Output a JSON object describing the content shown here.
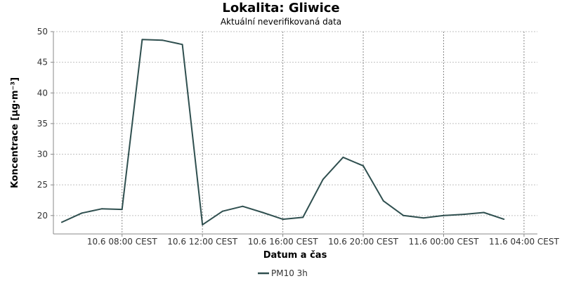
{
  "chart_data": {
    "type": "line",
    "title": "Lokalita: Gliwice",
    "subtitle": "Aktuální neverifikovaná data",
    "xlabel": "Datum a čas",
    "ylabel": "Koncentrace [µg·m⁻³]",
    "ylim": [
      17,
      50
    ],
    "yticks": [
      20,
      25,
      30,
      35,
      40,
      45,
      50
    ],
    "xlim": [
      "10.6 04:35",
      "11.6 04:40"
    ],
    "xticks": [
      {
        "t": "10.6 08:00",
        "label": "10.6 08:00 CEST"
      },
      {
        "t": "10.6 12:00",
        "label": "10.6 12:00 CEST"
      },
      {
        "t": "10.6 16:00",
        "label": "10.6 16:00 CEST"
      },
      {
        "t": "10.6 20:00",
        "label": "10.6 20:00 CEST"
      },
      {
        "t": "11.6 00:00",
        "label": "11.6 00:00 CEST"
      },
      {
        "t": "11.6 04:00",
        "label": "11.6 04:00 CEST"
      }
    ],
    "grid": true,
    "legend_position": "bottom-center",
    "series": [
      {
        "name": "PM10 3h",
        "color": "#2f4f4f",
        "x": [
          "10.6 05:00",
          "10.6 06:00",
          "10.6 07:00",
          "10.6 08:00",
          "10.6 09:00",
          "10.6 10:00",
          "10.6 11:00",
          "10.6 12:00",
          "10.6 13:00",
          "10.6 14:00",
          "10.6 15:00",
          "10.6 16:00",
          "10.6 17:00",
          "10.6 18:00",
          "10.6 19:00",
          "10.6 20:00",
          "10.6 21:00",
          "10.6 22:00",
          "10.6 23:00",
          "11.6 00:00",
          "11.6 01:00",
          "11.6 02:00",
          "11.6 03:00"
        ],
        "y": [
          18.9,
          20.4,
          21.1,
          21.0,
          48.7,
          48.6,
          47.9,
          18.5,
          20.7,
          21.5,
          20.5,
          19.4,
          19.7,
          25.9,
          29.5,
          28.1,
          22.4,
          20.0,
          19.6,
          20.0,
          20.2,
          20.5,
          19.4
        ]
      }
    ]
  }
}
